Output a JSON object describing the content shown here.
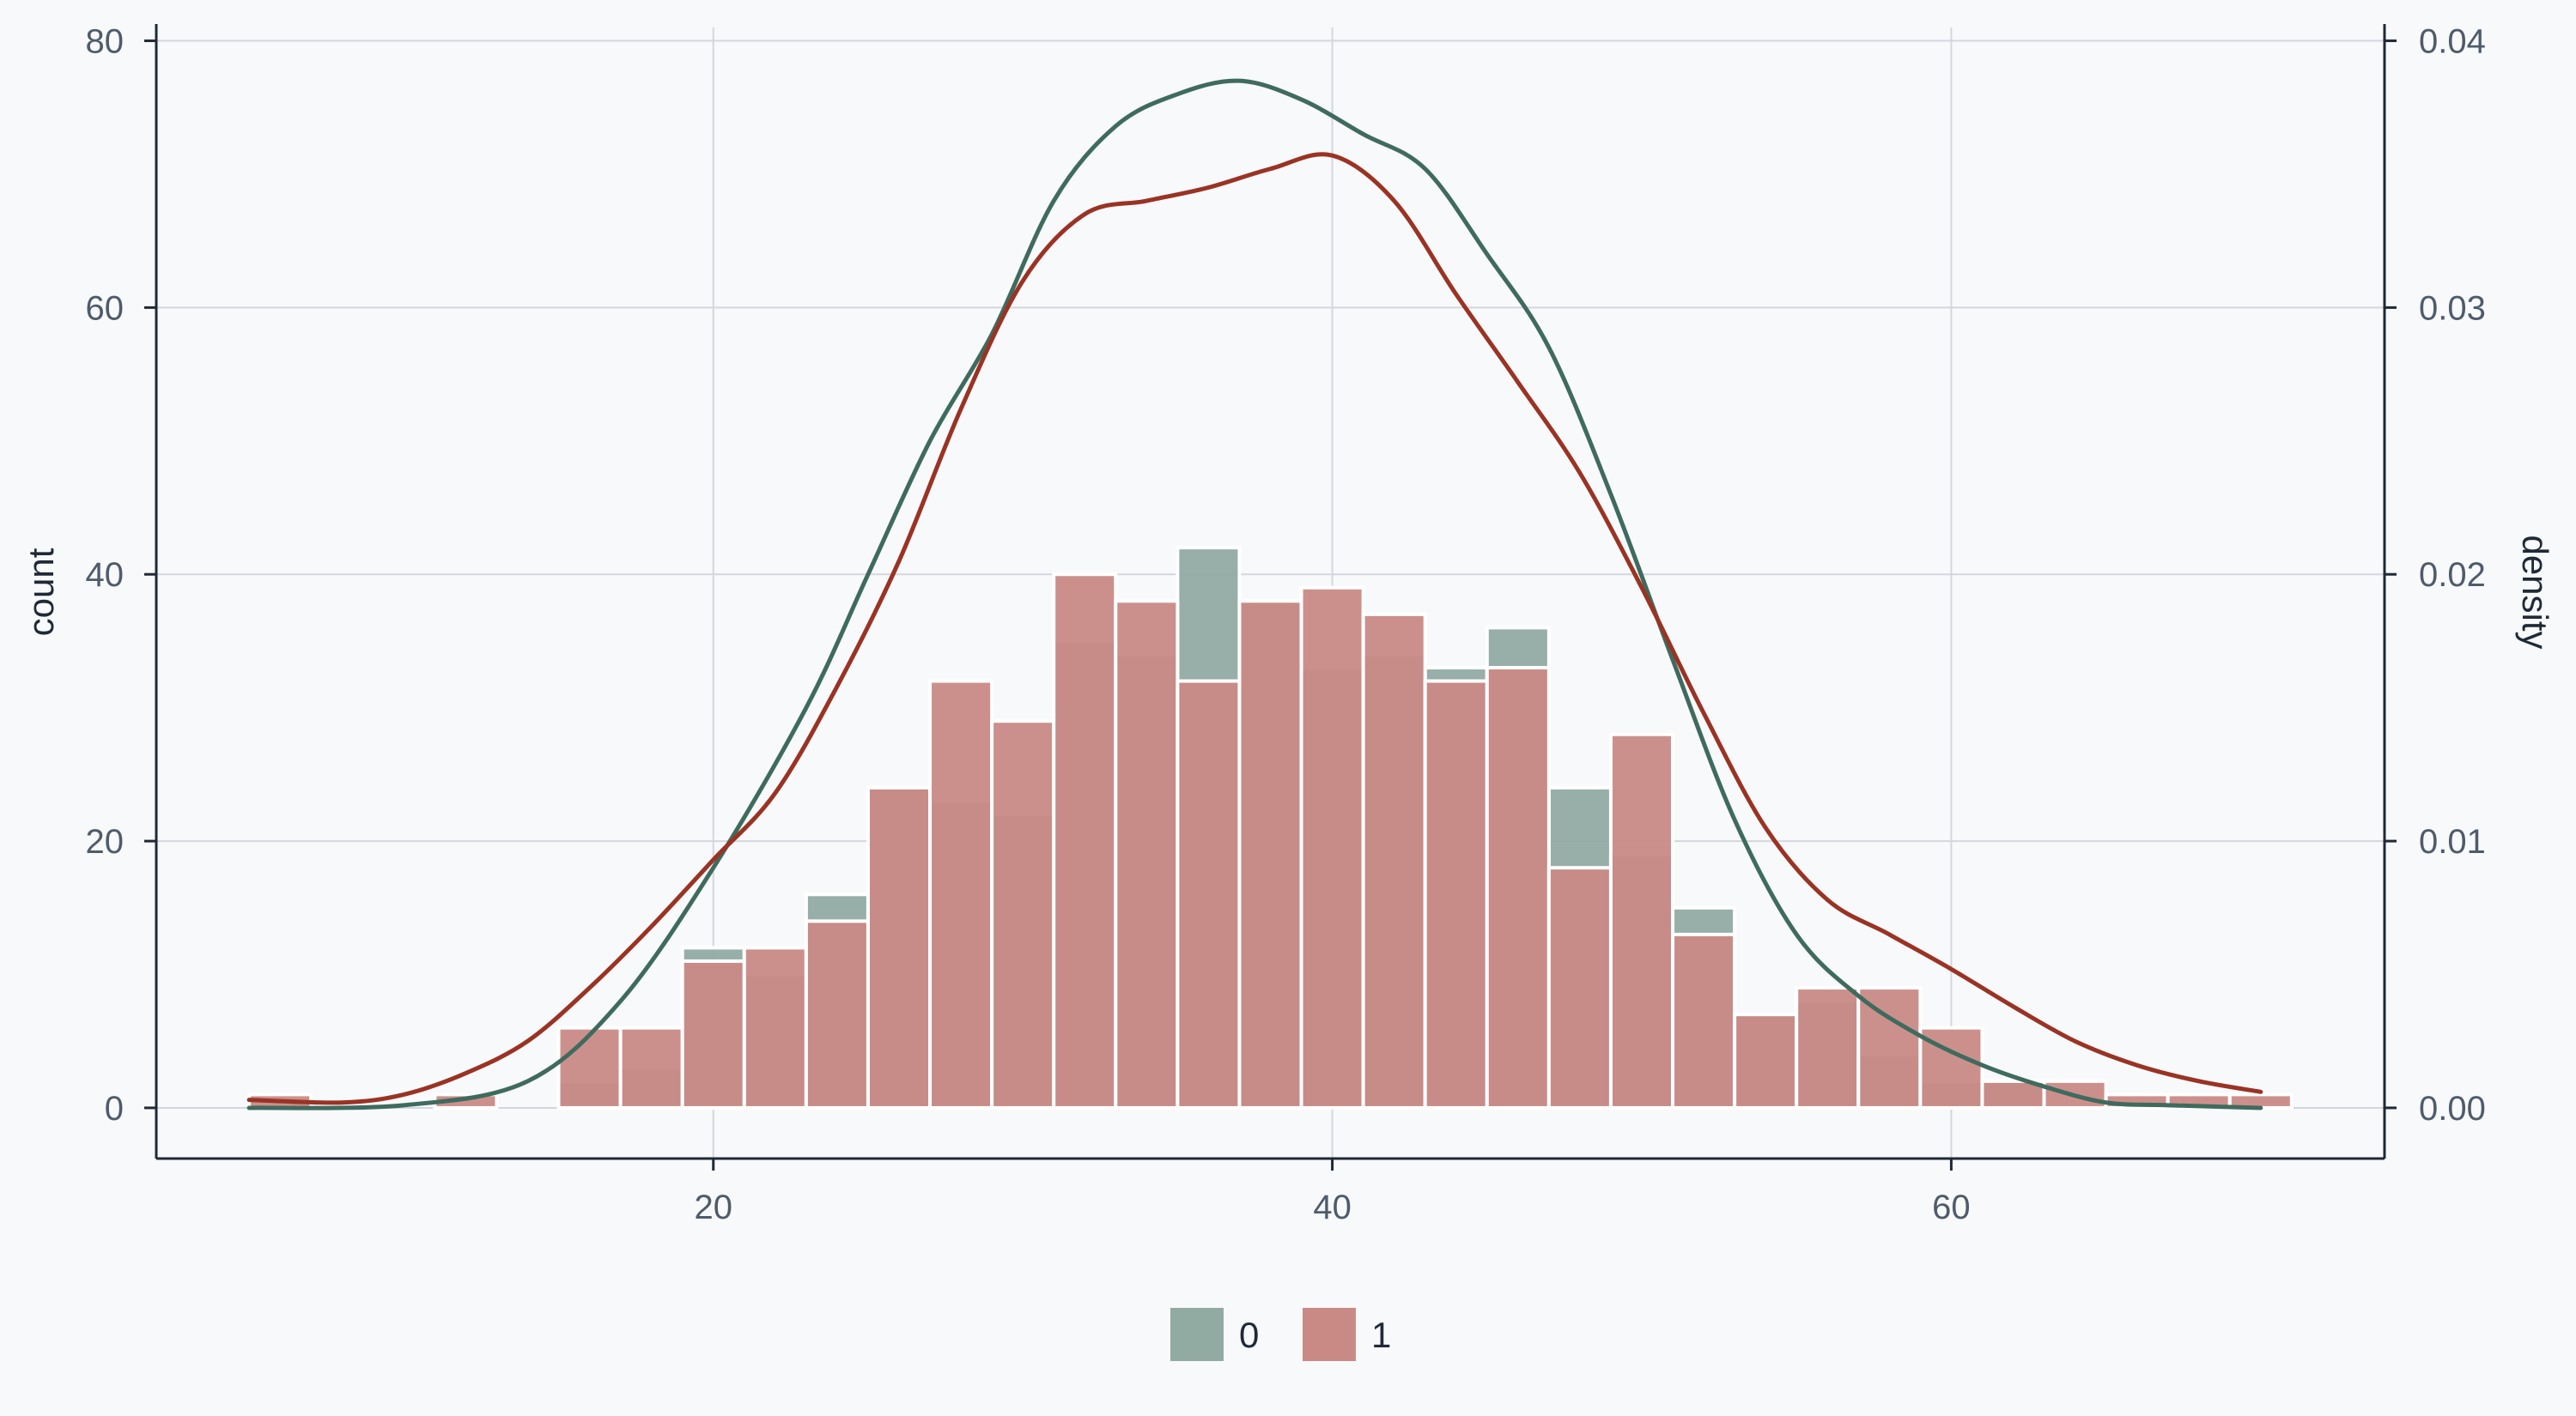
{
  "chart_data": {
    "type": "bar",
    "subtype": "stacked-histogram-with-density",
    "x": {
      "range": [
        2,
        74
      ],
      "ticks": [
        20,
        40,
        60
      ],
      "tick_labels": [
        "20",
        "40",
        "60"
      ],
      "grid": true
    },
    "y_left": {
      "label": "count",
      "range": [
        -3.8,
        81
      ],
      "ticks": [
        0,
        20,
        40,
        60,
        80
      ],
      "tick_labels": [
        "0",
        "20",
        "40",
        "60",
        "80"
      ],
      "grid": true
    },
    "y_right": {
      "label": "density",
      "ticks": [
        0,
        0.01,
        0.02,
        0.03,
        0.04
      ],
      "tick_labels": [
        "0.00",
        "0.01",
        "0.02",
        "0.03",
        "0.04"
      ],
      "count_per_density": 2000
    },
    "bin_width": 2,
    "series": [
      {
        "name": "0",
        "color": "#91aba3",
        "bins": [
          {
            "x0": 19,
            "x1": 21,
            "count": 12
          },
          {
            "x0": 21,
            "x1": 23,
            "count": 10
          },
          {
            "x0": 23,
            "x1": 25,
            "count": 16
          },
          {
            "x0": 25,
            "x1": 27,
            "count": 24
          },
          {
            "x0": 27,
            "x1": 29,
            "count": 23
          },
          {
            "x0": 29,
            "x1": 31,
            "count": 22
          },
          {
            "x0": 31,
            "x1": 33,
            "count": 35
          },
          {
            "x0": 33,
            "x1": 35,
            "count": 34
          },
          {
            "x0": 35,
            "x1": 37,
            "count": 42
          },
          {
            "x0": 37,
            "x1": 39,
            "count": 38
          },
          {
            "x0": 39,
            "x1": 41,
            "count": 33
          },
          {
            "x0": 41,
            "x1": 43,
            "count": 34
          },
          {
            "x0": 43,
            "x1": 45,
            "count": 33
          },
          {
            "x0": 45,
            "x1": 47,
            "count": 36
          },
          {
            "x0": 47,
            "x1": 49,
            "count": 24
          },
          {
            "x0": 49,
            "x1": 51,
            "count": 19
          },
          {
            "x0": 51,
            "x1": 53,
            "count": 15
          },
          {
            "x0": 53,
            "x1": 55,
            "count": 7
          },
          {
            "x0": 55,
            "x1": 57,
            "count": 8
          },
          {
            "x0": 57,
            "x1": 59,
            "count": 4
          },
          {
            "x0": 59,
            "x1": 61,
            "count": 2
          },
          {
            "x0": 61,
            "x1": 63,
            "count": 2
          },
          {
            "x0": 15,
            "x1": 17,
            "count": 2
          },
          {
            "x0": 17,
            "x1": 19,
            "count": 3
          }
        ]
      },
      {
        "name": "1",
        "color": "#c98a86",
        "bins": [
          {
            "x0": 5,
            "x1": 7,
            "count": 1
          },
          {
            "x0": 11,
            "x1": 13,
            "count": 1
          },
          {
            "x0": 15,
            "x1": 17,
            "count": 6
          },
          {
            "x0": 17,
            "x1": 19,
            "count": 6
          },
          {
            "x0": 19,
            "x1": 21,
            "count": 11
          },
          {
            "x0": 21,
            "x1": 23,
            "count": 12
          },
          {
            "x0": 23,
            "x1": 25,
            "count": 14
          },
          {
            "x0": 25,
            "x1": 27,
            "count": 24
          },
          {
            "x0": 27,
            "x1": 29,
            "count": 32
          },
          {
            "x0": 29,
            "x1": 31,
            "count": 29
          },
          {
            "x0": 31,
            "x1": 33,
            "count": 40
          },
          {
            "x0": 33,
            "x1": 35,
            "count": 38
          },
          {
            "x0": 35,
            "x1": 37,
            "count": 32
          },
          {
            "x0": 37,
            "x1": 39,
            "count": 38
          },
          {
            "x0": 39,
            "x1": 41,
            "count": 39
          },
          {
            "x0": 41,
            "x1": 43,
            "count": 37
          },
          {
            "x0": 43,
            "x1": 45,
            "count": 32
          },
          {
            "x0": 45,
            "x1": 47,
            "count": 33
          },
          {
            "x0": 47,
            "x1": 49,
            "count": 18
          },
          {
            "x0": 49,
            "x1": 51,
            "count": 28
          },
          {
            "x0": 51,
            "x1": 53,
            "count": 13
          },
          {
            "x0": 53,
            "x1": 55,
            "count": 7
          },
          {
            "x0": 55,
            "x1": 57,
            "count": 9
          },
          {
            "x0": 57,
            "x1": 59,
            "count": 9
          },
          {
            "x0": 59,
            "x1": 61,
            "count": 6
          },
          {
            "x0": 61,
            "x1": 63,
            "count": 2
          },
          {
            "x0": 63,
            "x1": 65,
            "count": 2
          },
          {
            "x0": 65,
            "x1": 67,
            "count": 1
          },
          {
            "x0": 67,
            "x1": 69,
            "count": 1
          },
          {
            "x0": 69,
            "x1": 71,
            "count": 1
          }
        ]
      }
    ],
    "density_curves": [
      {
        "name": "0",
        "color": "#3f6b5e",
        "points": [
          [
            5,
            0
          ],
          [
            10,
            0.0001
          ],
          [
            14,
            0.001
          ],
          [
            17,
            0.004
          ],
          [
            20,
            0.009
          ],
          [
            23,
            0.015
          ],
          [
            25,
            0.02
          ],
          [
            27,
            0.025
          ],
          [
            29,
            0.029
          ],
          [
            31,
            0.034
          ],
          [
            33,
            0.0368
          ],
          [
            35,
            0.038
          ],
          [
            37,
            0.0385
          ],
          [
            39,
            0.0378
          ],
          [
            41,
            0.0365
          ],
          [
            43,
            0.0352
          ],
          [
            45,
            0.032
          ],
          [
            47,
            0.0285
          ],
          [
            49,
            0.023
          ],
          [
            51,
            0.0168
          ],
          [
            53,
            0.0108
          ],
          [
            55,
            0.0065
          ],
          [
            57,
            0.0042
          ],
          [
            59,
            0.0027
          ],
          [
            61,
            0.0016
          ],
          [
            63,
            0.0008
          ],
          [
            65,
            0.0002
          ],
          [
            67,
            0.0001
          ],
          [
            70,
            0
          ]
        ]
      },
      {
        "name": "1",
        "color": "#9a3324",
        "points": [
          [
            5,
            0.0003
          ],
          [
            8,
            0.0002
          ],
          [
            10,
            0.0005
          ],
          [
            12,
            0.0013
          ],
          [
            14,
            0.0025
          ],
          [
            16,
            0.0045
          ],
          [
            18,
            0.0068
          ],
          [
            20,
            0.0093
          ],
          [
            22,
            0.0118
          ],
          [
            24,
            0.0158
          ],
          [
            26,
            0.0205
          ],
          [
            28,
            0.0262
          ],
          [
            30,
            0.031
          ],
          [
            32,
            0.0335
          ],
          [
            34,
            0.034
          ],
          [
            36,
            0.0345
          ],
          [
            38,
            0.0352
          ],
          [
            40,
            0.0357
          ],
          [
            42,
            0.034
          ],
          [
            44,
            0.0305
          ],
          [
            46,
            0.0272
          ],
          [
            48,
            0.0238
          ],
          [
            50,
            0.0195
          ],
          [
            52,
            0.0148
          ],
          [
            54,
            0.0105
          ],
          [
            56,
            0.0078
          ],
          [
            58,
            0.0065
          ],
          [
            60,
            0.0052
          ],
          [
            62,
            0.0038
          ],
          [
            64,
            0.0025
          ],
          [
            66,
            0.0016
          ],
          [
            68,
            0.001
          ],
          [
            70,
            0.0006
          ]
        ]
      }
    ],
    "legend": {
      "placement": "bottom-center",
      "entries": [
        {
          "label": "0",
          "color": "#91aba3"
        },
        {
          "label": "1",
          "color": "#c98a86"
        }
      ]
    }
  }
}
